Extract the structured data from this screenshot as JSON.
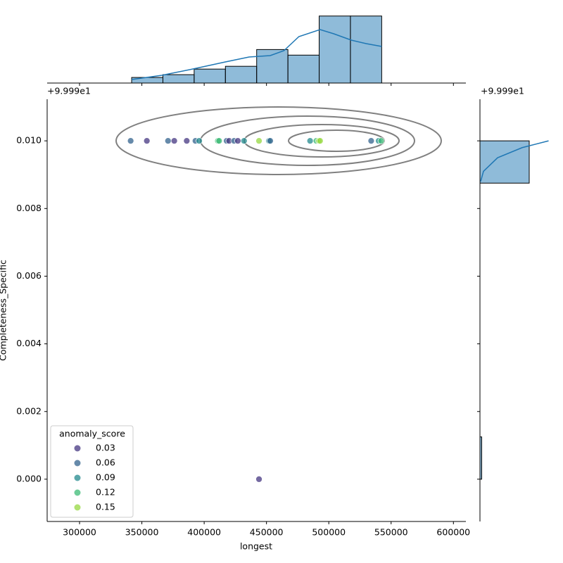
{
  "chart_data": [
    {
      "type": "scatter",
      "xlabel": "longest",
      "ylabel": "Completeness_Specific",
      "y_offset_label": "+9.999e1",
      "xlim": [
        274000,
        610000
      ],
      "xticks": [
        300000,
        350000,
        400000,
        450000,
        500000,
        550000,
        600000
      ],
      "ylim": [
        -0.00125,
        0.01123
      ],
      "yticks": [
        {
          "value": 0,
          "label": "0.000"
        },
        {
          "value": 0.002,
          "label": "0.002"
        },
        {
          "value": 0.004,
          "label": "0.004"
        },
        {
          "value": 0.006,
          "label": "0.006"
        },
        {
          "value": 0.008,
          "label": "0.008"
        },
        {
          "value": 0.01,
          "label": "0.010"
        }
      ],
      "x": [
        341000,
        354000,
        371000,
        376000,
        386000,
        393000,
        396000,
        411000,
        412000,
        418000,
        420000,
        424000,
        427000,
        432000,
        444000,
        452000,
        453000,
        485000,
        490000,
        492000,
        493000,
        534000,
        540000,
        542000,
        444000
      ],
      "y": [
        0.01,
        0.01,
        0.01,
        0.01,
        0.01,
        0.01,
        0.01,
        0.01,
        0.01,
        0.01,
        0.01,
        0.01,
        0.01,
        0.01,
        0.01,
        0.01,
        0.01,
        0.01,
        0.01,
        0.01,
        0.01,
        0.01,
        0.01,
        0.01,
        0
      ],
      "hue": [
        0.06,
        0.03,
        0.06,
        0.03,
        0.03,
        0.06,
        0.09,
        0.12,
        0.12,
        0.06,
        0.03,
        0.06,
        0.03,
        0.09,
        0.15,
        0.09,
        0.06,
        0.09,
        0.12,
        0.15,
        0.15,
        0.06,
        0.09,
        0.12,
        0.03
      ],
      "legend_title": "anomaly_score",
      "legend_loc": "lower left",
      "hue_values": [
        0.03,
        0.06,
        0.09,
        0.12,
        0.15
      ],
      "hue_colors": [
        "#453781",
        "#33638d",
        "#238a8d",
        "#3cbb75",
        "#95d840"
      ]
    },
    {
      "type": "histogram",
      "orientation": "vertical",
      "color": "#1f77b4",
      "bins": [
        341800,
        366880,
        391960,
        417040,
        442120,
        467200,
        492280,
        517360,
        542440
      ],
      "counts": [
        2,
        3,
        5,
        6,
        12,
        10,
        24,
        24
      ],
      "ylim": [
        0,
        25.2
      ],
      "kde": {
        "x": [
          341800,
          366000,
          391000,
          417000,
          436000,
          453000,
          464000,
          476000,
          493000,
          504000,
          518000,
          530000,
          542440
        ],
        "y": [
          1.26,
          2.77,
          5.04,
          7.56,
          9.32,
          9.83,
          11.59,
          16.63,
          19.15,
          17.64,
          15.37,
          14.11,
          13.1
        ]
      }
    },
    {
      "type": "histogram",
      "orientation": "horizontal",
      "color": "#1f77b4",
      "y_offset_label": "+9.999e1",
      "bins": [
        0,
        0.00125,
        0.0025,
        0.00375,
        0.005,
        0.00625,
        0.0075,
        0.00875,
        0.01
      ],
      "counts": [
        1,
        0,
        0,
        0,
        0,
        0,
        0,
        28
      ],
      "xlim": [
        0,
        39.2
      ],
      "kde": {
        "x": [
          0.4,
          2,
          10,
          24,
          39
        ],
        "y": [
          0.0088,
          0.0091,
          0.0095,
          0.0098,
          0.01
        ]
      }
    }
  ]
}
